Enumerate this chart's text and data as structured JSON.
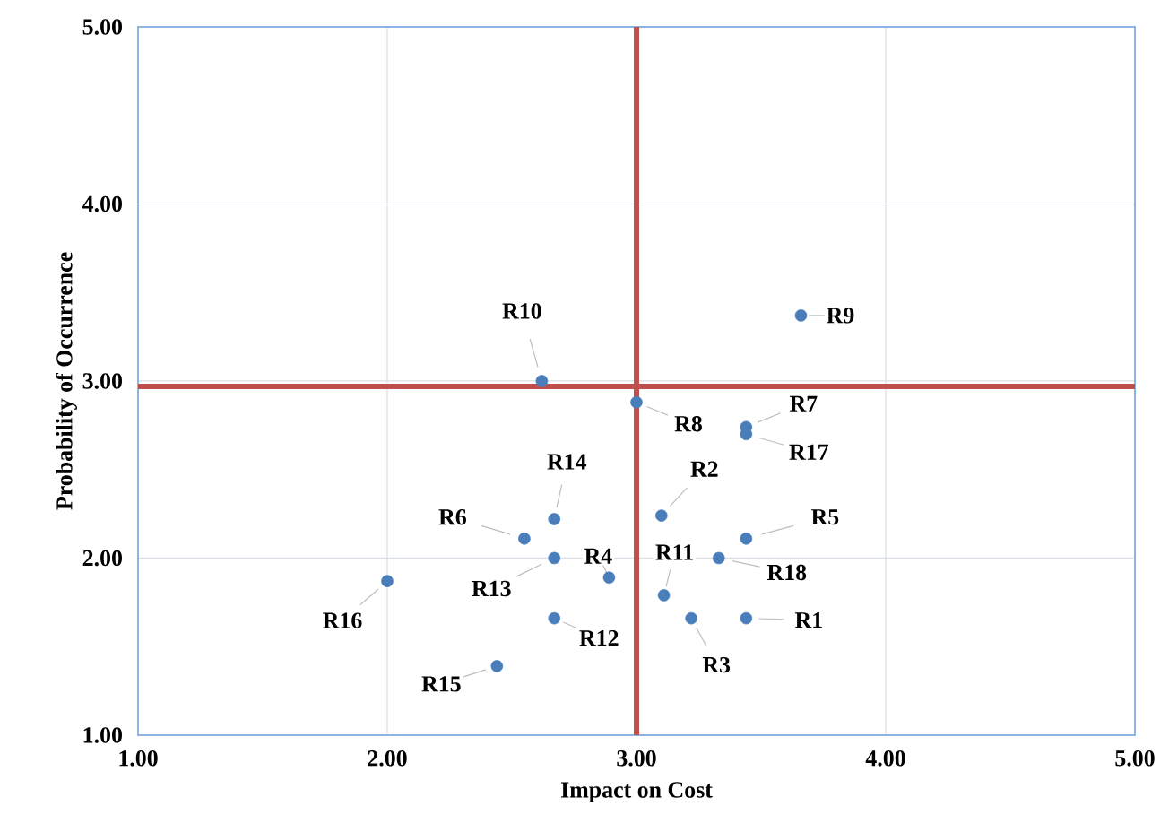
{
  "chart_data": {
    "type": "scatter",
    "xlabel": "Impact on Cost",
    "ylabel": "Probability of Occurrence",
    "xlim": [
      1,
      5
    ],
    "ylim": [
      1,
      5
    ],
    "xticks": [
      {
        "value": 1,
        "label": "1.00"
      },
      {
        "value": 2,
        "label": "2.00"
      },
      {
        "value": 3,
        "label": "3.00"
      },
      {
        "value": 4,
        "label": "4.00"
      },
      {
        "value": 5,
        "label": "5.00"
      }
    ],
    "yticks": [
      {
        "value": 1,
        "label": "1.00"
      },
      {
        "value": 2,
        "label": "2.00"
      },
      {
        "value": 3,
        "label": "3.00"
      },
      {
        "value": 4,
        "label": "4.00"
      },
      {
        "value": 5,
        "label": "5.00"
      }
    ],
    "grid": true,
    "marker": "circle",
    "series": [
      {
        "color": "#4a7ebb",
        "x": [
          3.44,
          3.1,
          3.22,
          2.89,
          3.44,
          2.55,
          3.44,
          3.0,
          3.66,
          2.62,
          3.11,
          2.67,
          2.67,
          2.67,
          2.44,
          2.0,
          3.44,
          3.33
        ],
        "values": [
          1.66,
          2.24,
          1.66,
          1.89,
          2.11,
          2.11,
          2.74,
          2.88,
          3.37,
          3.0,
          1.79,
          1.66,
          2.0,
          2.22,
          1.39,
          1.87,
          2.7,
          2.0
        ]
      }
    ],
    "ref_lines": [
      {
        "axis": "x",
        "value": 3.0,
        "color": "#c0504d"
      },
      {
        "axis": "y",
        "value": 2.97,
        "color": "#c0504d"
      }
    ],
    "annotations": [
      {
        "text": "R1",
        "x": 3.44,
        "y": 1.66
      },
      {
        "text": "R2",
        "x": 3.1,
        "y": 2.24
      },
      {
        "text": "R3",
        "x": 3.22,
        "y": 1.66
      },
      {
        "text": "R4",
        "x": 2.89,
        "y": 1.89
      },
      {
        "text": "R5",
        "x": 3.44,
        "y": 2.11
      },
      {
        "text": "R6",
        "x": 2.55,
        "y": 2.11
      },
      {
        "text": "R7",
        "x": 3.44,
        "y": 2.74
      },
      {
        "text": "R8",
        "x": 3.0,
        "y": 2.88
      },
      {
        "text": "R9",
        "x": 3.66,
        "y": 3.37
      },
      {
        "text": "R10",
        "x": 2.62,
        "y": 3.0
      },
      {
        "text": "R11",
        "x": 3.11,
        "y": 1.79
      },
      {
        "text": "R12",
        "x": 2.67,
        "y": 1.66
      },
      {
        "text": "R13",
        "x": 2.67,
        "y": 2.0
      },
      {
        "text": "R14",
        "x": 2.67,
        "y": 2.22
      },
      {
        "text": "R15",
        "x": 2.44,
        "y": 1.39
      },
      {
        "text": "R16",
        "x": 2.0,
        "y": 1.87
      },
      {
        "text": "R17",
        "x": 3.44,
        "y": 2.7
      },
      {
        "text": "R18",
        "x": 3.33,
        "y": 2.0
      }
    ]
  }
}
